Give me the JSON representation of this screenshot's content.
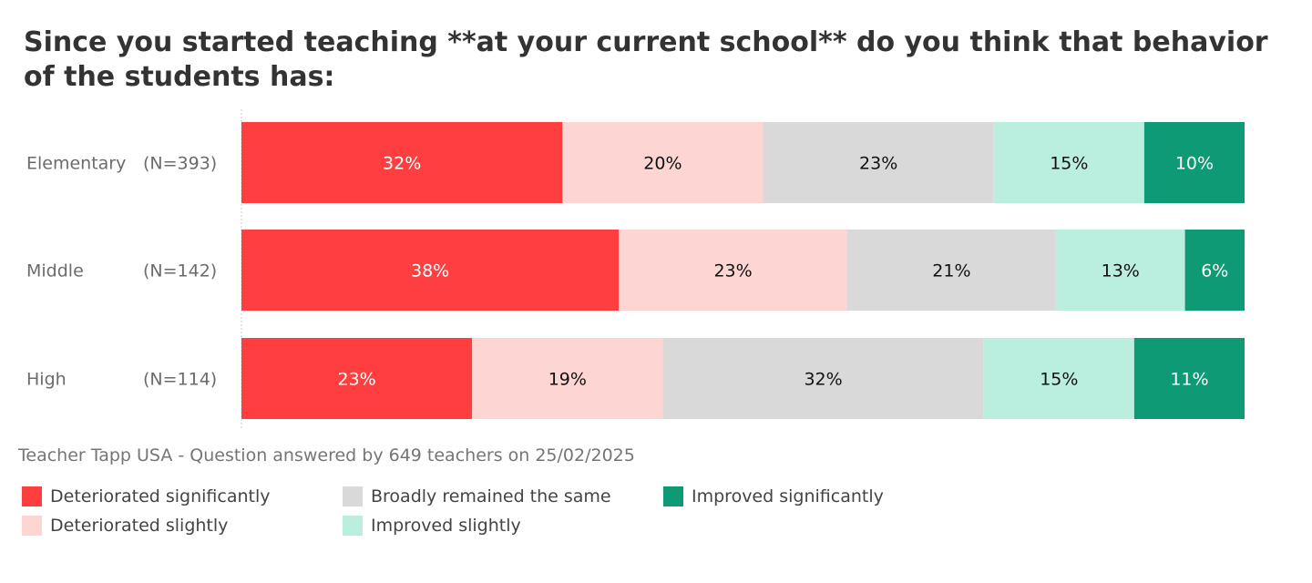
{
  "chart_data": {
    "type": "bar",
    "orientation": "horizontal",
    "stacked": true,
    "title": "Since you started teaching **at your current school** do you think that behavior of the students has:",
    "source": "Teacher Tapp USA - Question answered by 649 teachers on 25/02/2025",
    "categories": [
      {
        "label": "Elementary",
        "n": "(N=393)"
      },
      {
        "label": "Middle",
        "n": "(N=142)"
      },
      {
        "label": "High",
        "n": "(N=114)"
      }
    ],
    "series": [
      {
        "name": "Deteriorated significantly",
        "color": "#FF3F3F",
        "text_color": "#ffffff",
        "values": [
          32,
          38,
          23
        ]
      },
      {
        "name": "Deteriorated slightly",
        "color": "#FDD5D3",
        "text_color": "#111111",
        "values": [
          20,
          23,
          19
        ]
      },
      {
        "name": "Broadly remained the same",
        "color": "#D9D9D9",
        "text_color": "#111111",
        "values": [
          23,
          21,
          32
        ]
      },
      {
        "name": "Improved slightly",
        "color": "#BAEEDF",
        "text_color": "#111111",
        "values": [
          15,
          13,
          15
        ]
      },
      {
        "name": "Improved significantly",
        "color": "#0E9A74",
        "text_color": "#ffffff",
        "values": [
          10,
          6,
          11
        ]
      }
    ],
    "legend_order": [
      0,
      2,
      4,
      1,
      3
    ],
    "legend_position": "bottom-left",
    "value_suffix": "%",
    "grid": false
  }
}
